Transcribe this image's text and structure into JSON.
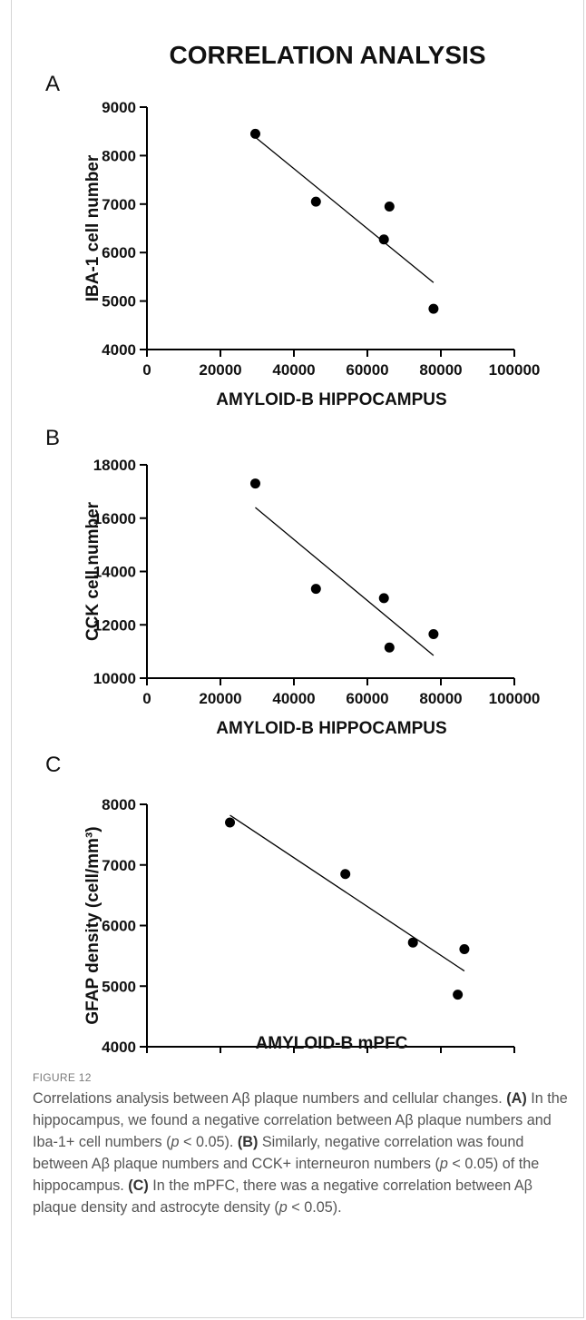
{
  "figure": {
    "title": "CORRELATION ANALYSIS",
    "label": "FIGURE 12"
  },
  "caption": {
    "intro": "Correlations analysis between Aβ plaque numbers and cellular changes.",
    "parts": [
      {
        "tag": "(A)",
        "text": "In the hippocampus, we found a negative correlation between Aβ plaque numbers and Iba-1+ cell numbers (",
        "p": "p",
        "tail": " < 0.05)."
      },
      {
        "tag": "(B)",
        "text": "Similarly, negative correlation was found between Aβ plaque numbers and CCK+ interneuron numbers (",
        "p": "p",
        "tail": " < 0.05) of the hippocampus."
      },
      {
        "tag": "(C)",
        "text": "In the mPFC, there was a negative correlation between Aβ plaque density and astrocyte density (",
        "p": "p",
        "tail": " < 0.05)."
      }
    ]
  },
  "chart_data": [
    {
      "panel": "A",
      "type": "scatter",
      "xlabel": "AMYLOID-B HIPPOCAMPUS",
      "ylabel": "IBA-1 cell number",
      "xlim": [
        0,
        100000
      ],
      "ylim": [
        4000,
        9000
      ],
      "xticks": [
        0,
        20000,
        40000,
        60000,
        80000,
        100000
      ],
      "yticks": [
        4000,
        5000,
        6000,
        7000,
        8000,
        9000
      ],
      "points": [
        {
          "x": 29500,
          "y": 8450
        },
        {
          "x": 46000,
          "y": 7050
        },
        {
          "x": 64500,
          "y": 6270
        },
        {
          "x": 66000,
          "y": 6950
        },
        {
          "x": 78000,
          "y": 4840
        }
      ],
      "fit_line": {
        "x": [
          29500,
          78000
        ],
        "y": [
          8380,
          5380
        ]
      }
    },
    {
      "panel": "B",
      "type": "scatter",
      "xlabel": "AMYLOID-B HIPPOCAMPUS",
      "ylabel": "CCK cell number",
      "xlim": [
        0,
        100000
      ],
      "ylim": [
        10000,
        18000
      ],
      "xticks": [
        0,
        20000,
        40000,
        60000,
        80000,
        100000
      ],
      "yticks": [
        10000,
        12000,
        14000,
        16000,
        18000
      ],
      "points": [
        {
          "x": 29500,
          "y": 17300
        },
        {
          "x": 46000,
          "y": 13350
        },
        {
          "x": 64500,
          "y": 13000
        },
        {
          "x": 66000,
          "y": 11150
        },
        {
          "x": 78000,
          "y": 11650
        }
      ],
      "fit_line": {
        "x": [
          29500,
          78000
        ],
        "y": [
          16400,
          10850
        ]
      }
    },
    {
      "panel": "C",
      "type": "scatter",
      "xlabel": "AMYLOID-B mPFC",
      "ylabel": "GFAP density (cell/mm³)",
      "xlim": [
        4000,
        9000
      ],
      "ylim": [
        4000,
        8000
      ],
      "xticks": [
        4000,
        5000,
        6000,
        7000,
        8000,
        9000
      ],
      "yticks": [
        4000,
        5000,
        6000,
        7000,
        8000
      ],
      "points": [
        {
          "x": 5130,
          "y": 7700
        },
        {
          "x": 6700,
          "y": 6850
        },
        {
          "x": 7620,
          "y": 5720
        },
        {
          "x": 8230,
          "y": 4860
        },
        {
          "x": 8320,
          "y": 5610
        }
      ],
      "fit_line": {
        "x": [
          5130,
          8320
        ],
        "y": [
          7820,
          5250
        ]
      }
    }
  ]
}
